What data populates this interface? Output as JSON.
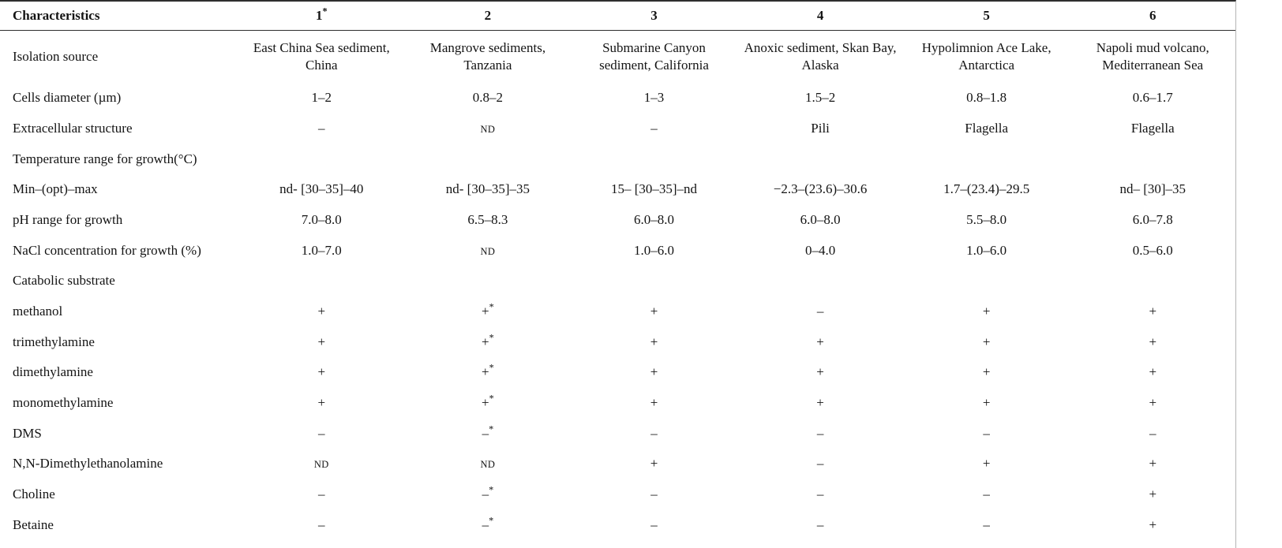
{
  "page": {
    "background": "#ffffff",
    "rule_color": "#2e2e2e",
    "edge_color": "#b5b5b5",
    "text_color": "#141414"
  },
  "table": {
    "header": {
      "label": "Characteristics",
      "columns": [
        "1*",
        "2",
        "3",
        "4",
        "5",
        "6"
      ]
    },
    "rows": [
      {
        "label": "Isolation source",
        "values": [
          "East China Sea sediment, China",
          "Mangrove sediments, Tanzania",
          "Submarine Canyon sediment, California",
          "Anoxic sediment, Skan Bay, Alaska",
          "Hypolimnion Ace Lake, Antarctica",
          "Napoli mud volcano, Mediterranean Sea"
        ]
      },
      {
        "label": "Cells diameter (µm)",
        "values": [
          "1–2",
          "0.8–2",
          "1–3",
          "1.5–2",
          "0.8–1.8",
          "0.6–1.7"
        ]
      },
      {
        "label": "Extracellular structure",
        "values": [
          "–",
          "ND",
          "–",
          "Pili",
          "Flagella",
          "Flagella"
        ]
      },
      {
        "label": "Temperature range for growth(°C)",
        "values": [
          "",
          "",
          "",
          "",
          "",
          ""
        ]
      },
      {
        "label": "Min–(opt)–max",
        "values": [
          "nd- [30–35]–40",
          "nd- [30–35]–35",
          "15– [30–35]–nd",
          "−2.3–(23.6)–30.6",
          "1.7–(23.4)–29.5",
          "nd– [30]–35"
        ]
      },
      {
        "label": "pH range for growth",
        "values": [
          "7.0–8.0",
          "6.5–8.3",
          "6.0–8.0",
          "6.0–8.0",
          "5.5–8.0",
          "6.0–7.8"
        ]
      },
      {
        "label": "NaCl concentration for growth (%)",
        "values": [
          "1.0–7.0",
          "ND",
          "1.0–6.0",
          "0–4.0",
          "1.0–6.0",
          "0.5–6.0"
        ]
      },
      {
        "label": "Catabolic substrate",
        "values": [
          "",
          "",
          "",
          "",
          "",
          ""
        ]
      },
      {
        "label": "methanol",
        "values": [
          "+",
          "+*",
          "+",
          "–",
          "+",
          "+"
        ]
      },
      {
        "label": "trimethylamine",
        "values": [
          "+",
          "+*",
          "+",
          "+",
          "+",
          "+"
        ]
      },
      {
        "label": "dimethylamine",
        "values": [
          "+",
          "+*",
          "+",
          "+",
          "+",
          "+"
        ]
      },
      {
        "label": "monomethylamine",
        "values": [
          "+",
          "+*",
          "+",
          "+",
          "+",
          "+"
        ]
      },
      {
        "label": "DMS",
        "values": [
          "–",
          "–*",
          "–",
          "–",
          "–",
          "–"
        ]
      },
      {
        "label": "N,N-Dimethylethanolamine",
        "values": [
          "ND",
          "ND",
          "+",
          "–",
          "+",
          "+"
        ]
      },
      {
        "label": "Choline",
        "values": [
          "–",
          "–*",
          "–",
          "–",
          "–",
          "+"
        ]
      },
      {
        "label": "Betaine",
        "values": [
          "–",
          "–*",
          "–",
          "–",
          "–",
          "+"
        ]
      }
    ]
  }
}
